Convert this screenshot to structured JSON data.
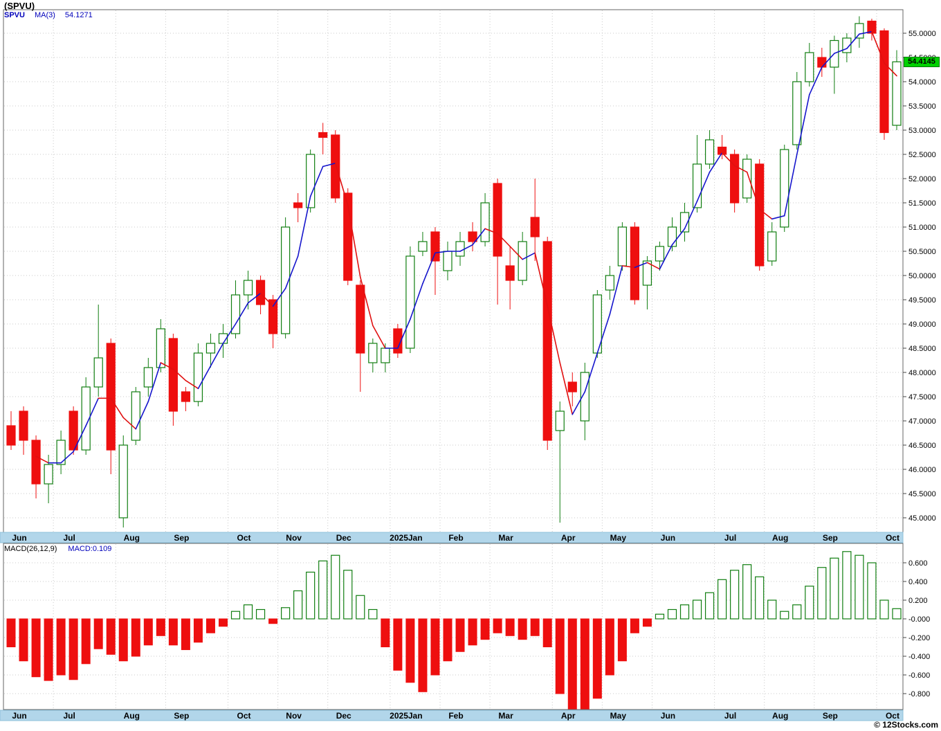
{
  "page": {
    "title": "(SPVU)",
    "watermark": "© 12Stocks.com"
  },
  "price_panel": {
    "legend": {
      "symbol": "SPVU",
      "ma_label": "MA(3)",
      "ma_value": "54.1271"
    },
    "last_price_tag": "54.4145"
  },
  "macd_panel": {
    "legend_label": "MACD(26,12,9)",
    "legend_value": "MACD:0.109"
  },
  "colors": {
    "up": "#0f7d0f",
    "down": "#ee0f0f",
    "ma_up": "#1515cc",
    "ma_down": "#e01010",
    "grid": "#c9c9c9",
    "border": "#666666",
    "band_bg": "#b2d6ea",
    "band_edge": "#8fc0da",
    "tag_bg": "#00d100",
    "legend_blue": "#0000bb"
  },
  "chart_data": [
    {
      "type": "candlestick",
      "panel": "price",
      "symbol": "SPVU",
      "interval": "weekly",
      "overlay": "MA(3)",
      "ma_period": 3,
      "ma_last": 54.1271,
      "last_close": 54.4145,
      "ylim": [
        44.7,
        55.5
      ],
      "yticks": {
        "min": 45.0,
        "max": 55.0,
        "step": 0.5,
        "decimals": 4
      },
      "grid": true,
      "months": [
        {
          "label": "Jun",
          "i": 0
        },
        {
          "label": "Jul",
          "i": 4
        },
        {
          "label": "Aug",
          "i": 9
        },
        {
          "label": "Sep",
          "i": 13
        },
        {
          "label": "Oct",
          "i": 18
        },
        {
          "label": "Nov",
          "i": 22
        },
        {
          "label": "Dec",
          "i": 26
        },
        {
          "label": "2025Jan",
          "i": 31
        },
        {
          "label": "Feb",
          "i": 35
        },
        {
          "label": "Mar",
          "i": 39
        },
        {
          "label": "Apr",
          "i": 44
        },
        {
          "label": "May",
          "i": 48
        },
        {
          "label": "Jun",
          "i": 52
        },
        {
          "label": "Jul",
          "i": 57
        },
        {
          "label": "Aug",
          "i": 61
        },
        {
          "label": "Sep",
          "i": 65
        },
        {
          "label": "Oct",
          "i": 70
        }
      ],
      "candle_format": [
        "open",
        "high",
        "low",
        "close"
      ],
      "candles": [
        [
          46.9,
          47.2,
          46.4,
          46.5
        ],
        [
          47.2,
          47.3,
          46.3,
          46.6
        ],
        [
          46.6,
          46.7,
          45.4,
          45.7
        ],
        [
          45.7,
          46.3,
          45.3,
          46.1
        ],
        [
          46.1,
          46.8,
          45.9,
          46.6
        ],
        [
          47.2,
          47.3,
          46.3,
          46.4
        ],
        [
          46.4,
          47.9,
          46.3,
          47.7
        ],
        [
          47.7,
          49.4,
          47.5,
          48.3
        ],
        [
          48.6,
          48.7,
          45.9,
          46.4
        ],
        [
          45.0,
          46.7,
          44.8,
          46.5
        ],
        [
          46.6,
          47.7,
          46.5,
          47.6
        ],
        [
          47.7,
          48.3,
          47.5,
          48.1
        ],
        [
          48.1,
          49.1,
          48.0,
          48.9
        ],
        [
          48.7,
          48.8,
          46.9,
          47.2
        ],
        [
          47.6,
          47.7,
          47.2,
          47.4
        ],
        [
          47.4,
          48.6,
          47.3,
          48.4
        ],
        [
          48.4,
          48.8,
          48.1,
          48.6
        ],
        [
          48.6,
          49.0,
          48.3,
          48.8
        ],
        [
          48.8,
          49.9,
          48.7,
          49.6
        ],
        [
          49.6,
          50.1,
          49.3,
          49.9
        ],
        [
          49.9,
          50.0,
          49.2,
          49.4
        ],
        [
          49.5,
          49.6,
          48.5,
          48.8
        ],
        [
          48.8,
          51.2,
          48.7,
          51.0
        ],
        [
          51.5,
          51.7,
          51.1,
          51.4
        ],
        [
          51.4,
          52.6,
          51.3,
          52.5
        ],
        [
          52.95,
          53.15,
          52.5,
          52.85
        ],
        [
          52.9,
          53.0,
          51.5,
          51.6
        ],
        [
          51.7,
          51.8,
          49.8,
          49.9
        ],
        [
          49.8,
          49.9,
          47.6,
          48.4
        ],
        [
          48.2,
          48.7,
          48.0,
          48.6
        ],
        [
          48.2,
          48.6,
          48.0,
          48.5
        ],
        [
          48.9,
          49.0,
          48.3,
          48.4
        ],
        [
          48.5,
          50.6,
          48.4,
          50.4
        ],
        [
          50.5,
          50.9,
          50.4,
          50.7
        ],
        [
          50.9,
          51.0,
          49.6,
          50.3
        ],
        [
          50.1,
          50.7,
          49.9,
          50.5
        ],
        [
          50.4,
          50.9,
          50.2,
          50.7
        ],
        [
          50.9,
          51.1,
          50.5,
          50.7
        ],
        [
          50.7,
          51.7,
          50.6,
          51.5
        ],
        [
          51.9,
          52.0,
          49.4,
          50.4
        ],
        [
          50.2,
          50.6,
          49.3,
          49.9
        ],
        [
          49.9,
          50.9,
          49.8,
          50.7
        ],
        [
          51.2,
          52.0,
          50.3,
          50.8
        ],
        [
          50.7,
          50.8,
          46.4,
          46.6
        ],
        [
          46.8,
          47.4,
          44.9,
          47.2
        ],
        [
          47.8,
          48.0,
          47.3,
          47.6
        ],
        [
          47.0,
          48.2,
          46.6,
          48.0
        ],
        [
          48.4,
          49.7,
          48.3,
          49.6
        ],
        [
          49.7,
          50.2,
          49.5,
          50.0
        ],
        [
          50.2,
          51.1,
          50.1,
          51.0
        ],
        [
          51.0,
          51.1,
          49.4,
          49.5
        ],
        [
          49.8,
          50.4,
          49.3,
          50.3
        ],
        [
          50.3,
          50.7,
          50.1,
          50.6
        ],
        [
          50.6,
          51.2,
          50.5,
          51.0
        ],
        [
          50.9,
          51.5,
          50.7,
          51.3
        ],
        [
          51.4,
          52.9,
          51.3,
          52.3
        ],
        [
          52.3,
          53.0,
          52.2,
          52.8
        ],
        [
          52.65,
          52.9,
          52.4,
          52.5
        ],
        [
          52.5,
          52.6,
          51.3,
          51.5
        ],
        [
          51.6,
          52.5,
          51.5,
          52.4
        ],
        [
          52.3,
          52.4,
          50.1,
          50.2
        ],
        [
          50.3,
          51.1,
          50.2,
          50.9
        ],
        [
          51.0,
          52.7,
          50.9,
          52.6
        ],
        [
          52.7,
          54.2,
          52.6,
          54.0
        ],
        [
          54.0,
          54.8,
          53.9,
          54.6
        ],
        [
          54.5,
          54.7,
          54.1,
          54.3
        ],
        [
          54.3,
          54.95,
          53.75,
          54.85
        ],
        [
          54.6,
          55.0,
          54.4,
          54.9
        ],
        [
          54.9,
          55.35,
          54.7,
          55.2
        ],
        [
          55.25,
          55.3,
          54.85,
          55.0
        ],
        [
          55.05,
          55.1,
          52.8,
          52.95
        ],
        [
          53.1,
          54.65,
          53.0,
          54.41
        ]
      ]
    },
    {
      "type": "bar",
      "panel": "macd",
      "name": "MACD(26,12,9)",
      "last": 0.109,
      "ylim": [
        -0.97,
        0.81
      ],
      "yticks": {
        "min": -0.8,
        "max": 0.6,
        "step": 0.2,
        "decimals": 3
      },
      "grid": true,
      "months": [
        {
          "label": "Jun",
          "i": 0
        },
        {
          "label": "Jul",
          "i": 4
        },
        {
          "label": "Aug",
          "i": 9
        },
        {
          "label": "Sep",
          "i": 13
        },
        {
          "label": "Oct",
          "i": 18
        },
        {
          "label": "Nov",
          "i": 22
        },
        {
          "label": "Dec",
          "i": 26
        },
        {
          "label": "2025Jan",
          "i": 31
        },
        {
          "label": "Feb",
          "i": 35
        },
        {
          "label": "Mar",
          "i": 39
        },
        {
          "label": "Apr",
          "i": 44
        },
        {
          "label": "May",
          "i": 48
        },
        {
          "label": "Jun",
          "i": 52
        },
        {
          "label": "Jul",
          "i": 57
        },
        {
          "label": "Aug",
          "i": 61
        },
        {
          "label": "Sep",
          "i": 65
        },
        {
          "label": "Oct",
          "i": 70
        }
      ],
      "values": [
        -0.3,
        -0.45,
        -0.62,
        -0.66,
        -0.6,
        -0.65,
        -0.48,
        -0.32,
        -0.38,
        -0.45,
        -0.4,
        -0.28,
        -0.18,
        -0.28,
        -0.33,
        -0.25,
        -0.15,
        -0.08,
        0.08,
        0.15,
        0.1,
        -0.05,
        0.12,
        0.3,
        0.5,
        0.62,
        0.68,
        0.52,
        0.25,
        0.1,
        -0.3,
        -0.55,
        -0.68,
        -0.78,
        -0.6,
        -0.45,
        -0.35,
        -0.28,
        -0.22,
        -0.15,
        -0.18,
        -0.22,
        -0.18,
        -0.3,
        -0.8,
        -1.05,
        -1.0,
        -0.85,
        -0.6,
        -0.45,
        -0.15,
        -0.08,
        0.05,
        0.1,
        0.15,
        0.2,
        0.28,
        0.42,
        0.52,
        0.58,
        0.45,
        0.2,
        0.08,
        0.15,
        0.35,
        0.55,
        0.65,
        0.72,
        0.68,
        0.6,
        0.2,
        0.109
      ]
    }
  ]
}
